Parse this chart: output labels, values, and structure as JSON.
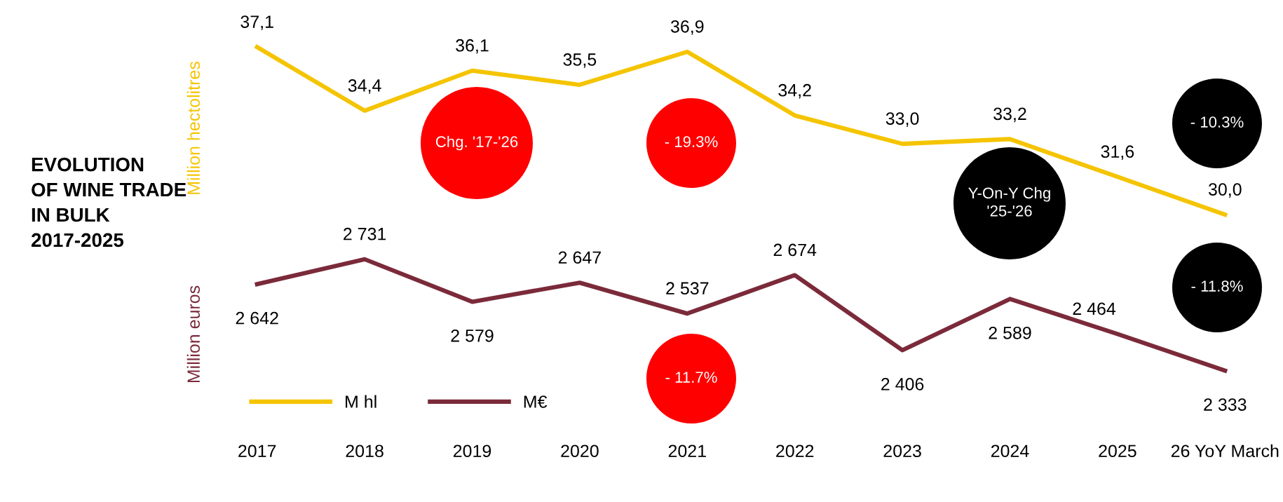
{
  "chart_data": [
    {
      "type": "line",
      "title": "EVOLUTION\nOF WINE TRADE\nIN BULK\n2017-2025",
      "ylabel": "Million hectolitres",
      "series": [
        {
          "name": "M hl",
          "color": "#f5c400",
          "values": [
            37.1,
            34.4,
            36.1,
            35.5,
            36.9,
            34.2,
            33.0,
            33.2,
            31.6,
            30.0
          ],
          "value_labels": [
            "37,1",
            "34,4",
            "36,1",
            "35,5",
            "36,9",
            "34,2",
            "33,0",
            "33,2",
            "31,6",
            "30,0"
          ]
        }
      ],
      "tick_labels": false,
      "grid": false,
      "marker": "none",
      "line_style": "solid",
      "annotations": [
        "Chg. '17-'26",
        "- 19.3%",
        "Y-On-Y Chg\n'25-'26",
        "- 10.3%"
      ]
    },
    {
      "type": "line",
      "ylabel": "Million euros",
      "categories": [
        "2017",
        "2018",
        "2019",
        "2020",
        "2021",
        "2022",
        "2023",
        "2024",
        "2025",
        "26 YoY March"
      ],
      "series": [
        {
          "name": "M€",
          "color": "#7b2a3a",
          "values": [
            2642,
            2731,
            2579,
            2647,
            2537,
            2674,
            2406,
            2589,
            2464,
            2333
          ],
          "value_labels": [
            "2 642",
            "2 731",
            "2 579",
            "2 647",
            "2 537",
            "2 674",
            "2 406",
            "2 589",
            "2 464",
            "2 333"
          ]
        }
      ],
      "tick_labels": "x",
      "grid": false,
      "legend": "bottom left",
      "marker": "none",
      "line_style": "solid",
      "annotations": [
        "- 11.7%",
        "- 11.8%"
      ]
    }
  ]
}
